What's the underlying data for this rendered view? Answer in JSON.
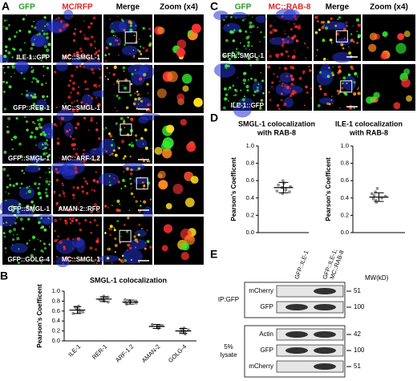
{
  "panel_a": {
    "letter": "A",
    "headers": [
      "GFP",
      "MC/RFP",
      "Merge",
      "Zoom (x4)"
    ],
    "rows": [
      {
        "gfp": "ILE-1::GFP",
        "mc": "MC::SMGL-1"
      },
      {
        "gfp": "GFP::RER-1",
        "mc": "MC::SMGL-1"
      },
      {
        "gfp": "GFP::SMGL-1",
        "mc": "MC::ARF-1.2"
      },
      {
        "gfp": "GFP::SMGL-1",
        "mc": "AMAN-2::RFP"
      },
      {
        "gfp": "GFP::GOLG-4",
        "mc": "MC::SMGL-1"
      }
    ]
  },
  "panel_c": {
    "letter": "C",
    "headers": [
      "GFP",
      "MC::RAB-8",
      "Merge",
      "Zoom (x4)"
    ],
    "rows": [
      "GFP::SMGL-1",
      "ILE-1::GFP"
    ]
  },
  "chart_data": [
    {
      "type": "dotplot",
      "panel": "B",
      "title": [
        "SMGL-1 colocalization"
      ],
      "ylabel": "Pearson's Coefficent",
      "categories": [
        "ILE-1",
        "RER-1",
        "ARF-1.2",
        "AMAN-2",
        "GOLG-4"
      ],
      "values": [
        0.62,
        0.84,
        0.78,
        0.29,
        0.2
      ],
      "error": [
        0.07,
        0.05,
        0.04,
        0.04,
        0.05
      ],
      "points": [
        [
          0.55,
          0.58,
          0.6,
          0.62,
          0.64,
          0.66,
          0.7,
          0.68,
          0.57
        ],
        [
          0.78,
          0.8,
          0.82,
          0.84,
          0.86,
          0.88,
          0.9,
          0.85,
          0.83
        ],
        [
          0.74,
          0.76,
          0.77,
          0.78,
          0.8,
          0.81,
          0.83,
          0.79
        ],
        [
          0.25,
          0.27,
          0.28,
          0.3,
          0.31,
          0.33,
          0.29
        ],
        [
          0.14,
          0.16,
          0.18,
          0.2,
          0.22,
          0.24,
          0.26,
          0.19
        ]
      ],
      "ylim": [
        0,
        1
      ],
      "yticks": [
        {
          "value": 0,
          "label": "0.0"
        },
        0.2,
        0.4,
        0.6,
        0.8,
        {
          "value": 1,
          "label": "1.0"
        }
      ]
    },
    {
      "type": "dotplot",
      "panel": "D",
      "title": [
        "SMGL-1 colocalization",
        "with RAB-8"
      ],
      "ylabel": "Pearson's Coefficent",
      "values": [
        0.52
      ],
      "error": [
        0.06
      ],
      "points": [
        [
          0.45,
          0.47,
          0.49,
          0.5,
          0.52,
          0.53,
          0.55,
          0.57,
          0.6,
          0.48
        ]
      ],
      "ylim": [
        0,
        1
      ],
      "yticks": [
        {
          "value": 0,
          "label": "0.0"
        },
        0.2,
        0.4,
        0.6,
        0.8,
        {
          "value": 1,
          "label": "1.0"
        }
      ]
    },
    {
      "type": "dotplot",
      "title": [
        "ILE-1 colocalization",
        "with RAB-8"
      ],
      "ylabel": "Pearson's Coefficent",
      "values": [
        0.41
      ],
      "error": [
        0.05
      ],
      "points": [
        [
          0.35,
          0.37,
          0.39,
          0.4,
          0.42,
          0.43,
          0.45,
          0.47,
          0.51
        ]
      ],
      "ylim": [
        0,
        1
      ],
      "yticks": [
        {
          "value": 0,
          "label": "0.0"
        },
        0.2,
        0.4,
        0.6,
        0.8,
        {
          "value": 1,
          "label": "1.0"
        }
      ]
    }
  ],
  "panel_e": {
    "letter": "E",
    "lanes": [
      [
        "GFP::ILE-1"
      ],
      [
        "GFP::ILE-1;",
        "MC::RAB-8"
      ]
    ],
    "mw_header": "MW(kD)",
    "groups": [
      {
        "label": [
          "IP:GFP"
        ],
        "rows": [
          {
            "name": "mCherry",
            "mw": "51"
          },
          {
            "name": "GFP",
            "mw": "100"
          }
        ]
      },
      {
        "label": [
          "5%",
          "lysate"
        ],
        "rows": [
          {
            "name": "Actin",
            "mw": "42"
          },
          {
            "name": "GFP",
            "mw": "100"
          },
          {
            "name": "mCherry",
            "mw": "51"
          }
        ]
      }
    ]
  }
}
